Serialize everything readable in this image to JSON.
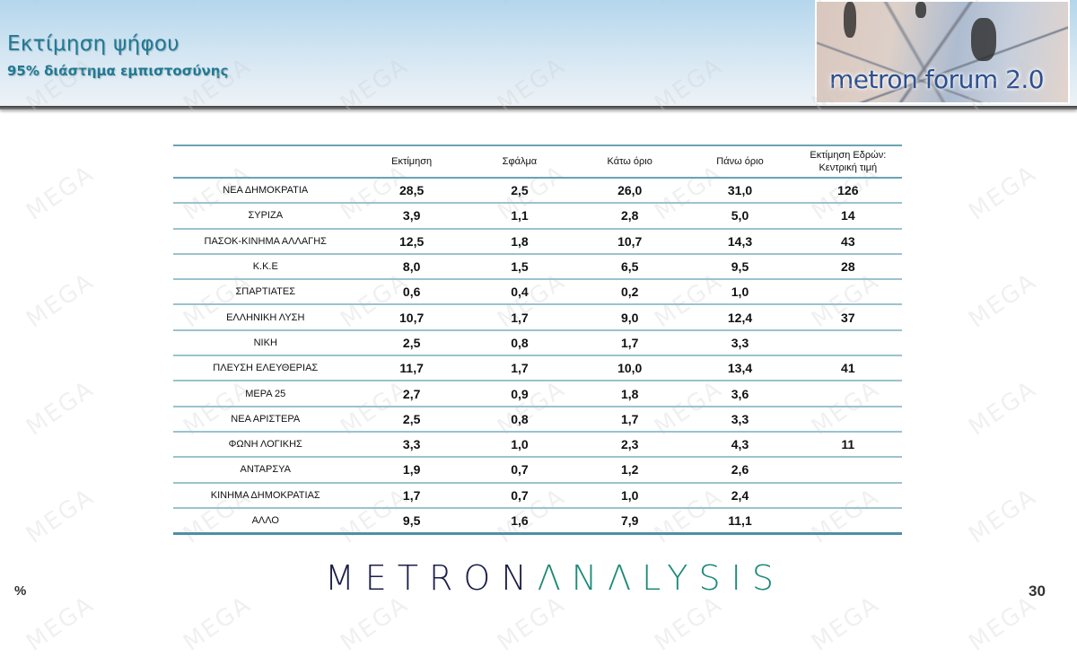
{
  "header": {
    "title": "Εκτίμηση ψήφου",
    "subtitle": "95% διάστημα εμπιστοσύνης",
    "logo_text": "metron forum 2.0"
  },
  "watermark_text": "MEGA",
  "table": {
    "columns": [
      "",
      "Εκτίμηση",
      "Σφάλμα",
      "Κάτω όριο",
      "Πάνω όριο",
      "Εκτίμηση Εδρών:",
      "Κεντρική τιμή"
    ],
    "rows": [
      {
        "party": "ΝΕΑ ΔΗΜΟΚΡΑΤΙΑ",
        "estimate": "28,5",
        "error": "2,5",
        "lower": "26,0",
        "upper": "31,0",
        "seats": "126"
      },
      {
        "party": "ΣΥΡΙΖΑ",
        "estimate": "3,9",
        "error": "1,1",
        "lower": "2,8",
        "upper": "5,0",
        "seats": "14"
      },
      {
        "party": "ΠΑΣΟΚ-ΚΙΝΗΜΑ ΑΛΛΑΓΗΣ",
        "estimate": "12,5",
        "error": "1,8",
        "lower": "10,7",
        "upper": "14,3",
        "seats": "43"
      },
      {
        "party": "Κ.Κ.Ε",
        "estimate": "8,0",
        "error": "1,5",
        "lower": "6,5",
        "upper": "9,5",
        "seats": "28"
      },
      {
        "party": "ΣΠΑΡΤΙΑΤΕΣ",
        "estimate": "0,6",
        "error": "0,4",
        "lower": "0,2",
        "upper": "1,0",
        "seats": ""
      },
      {
        "party": "ΕΛΛΗΝΙΚΗ ΛΥΣΗ",
        "estimate": "10,7",
        "error": "1,7",
        "lower": "9,0",
        "upper": "12,4",
        "seats": "37"
      },
      {
        "party": "ΝΙΚΗ",
        "estimate": "2,5",
        "error": "0,8",
        "lower": "1,7",
        "upper": "3,3",
        "seats": ""
      },
      {
        "party": "ΠΛΕΥΣΗ ΕΛΕΥΘΕΡΙΑΣ",
        "estimate": "11,7",
        "error": "1,7",
        "lower": "10,0",
        "upper": "13,4",
        "seats": "41"
      },
      {
        "party": "ΜΕΡΑ 25",
        "estimate": "2,7",
        "error": "0,9",
        "lower": "1,8",
        "upper": "3,6",
        "seats": ""
      },
      {
        "party": "ΝΕΑ ΑΡΙΣΤΕΡΑ",
        "estimate": "2,5",
        "error": "0,8",
        "lower": "1,7",
        "upper": "3,3",
        "seats": ""
      },
      {
        "party": "ΦΩΝΗ ΛΟΓΙΚΗΣ",
        "estimate": "3,3",
        "error": "1,0",
        "lower": "2,3",
        "upper": "4,3",
        "seats": "11"
      },
      {
        "party": "ΑΝΤΑΡΣΥΑ",
        "estimate": "1,9",
        "error": "0,7",
        "lower": "1,2",
        "upper": "2,6",
        "seats": ""
      },
      {
        "party": "ΚΙΝΗΜΑ ΔΗΜΟΚΡΑΤΙΑΣ",
        "estimate": "1,7",
        "error": "0,7",
        "lower": "1,0",
        "upper": "2,4",
        "seats": ""
      },
      {
        "party": "ΑΛΛΟ",
        "estimate": "9,5",
        "error": "1,6",
        "lower": "7,9",
        "upper": "11,1",
        "seats": ""
      }
    ]
  },
  "footer": {
    "brand_part1": "METRON",
    "brand_part2": "ΛNΛLYSIS",
    "unit": "%",
    "page_number": "30"
  },
  "colors": {
    "title": "#1f7a94",
    "rule": "#6aa3b4",
    "brand_dark": "#1c1f4a",
    "brand_teal": "#1c8b79"
  }
}
